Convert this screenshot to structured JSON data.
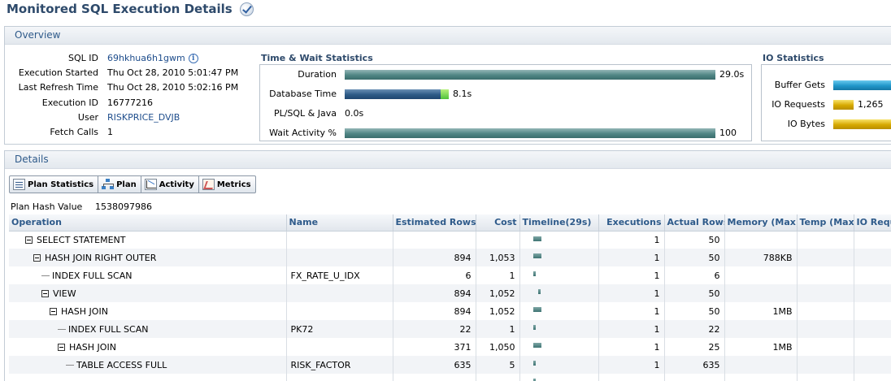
{
  "page": {
    "title": "Monitored SQL Execution Details"
  },
  "overview": {
    "header": "Overview",
    "fields": [
      {
        "label": "SQL ID",
        "value": "69hkhua6h1gwm",
        "link": true,
        "info": true
      },
      {
        "label": "Execution Started",
        "value": "Thu Oct 28, 2010 5:01:47 PM"
      },
      {
        "label": "Last Refresh Time",
        "value": "Thu Oct 28, 2010 5:02:16 PM"
      },
      {
        "label": "Execution ID",
        "value": "16777216"
      },
      {
        "label": "User",
        "value": "RISKPRICE_DVJB",
        "link": true
      },
      {
        "label": "Fetch Calls",
        "value": "1"
      }
    ],
    "time_wait": {
      "title": "Time & Wait Statistics",
      "rows": [
        {
          "label": "Duration",
          "value": "29.0s",
          "fraction": 1.0
        },
        {
          "label": "Database Time",
          "value": "8.1s",
          "fraction": 0.28
        },
        {
          "label": "PL/SQL & Java",
          "value": "0.0s",
          "fraction": 0
        },
        {
          "label": "Wait Activity %",
          "value": "100",
          "fraction": 1.0
        }
      ]
    },
    "io": {
      "title": "IO Statistics",
      "rows": [
        {
          "label": "Buffer Gets",
          "value": ""
        },
        {
          "label": "IO Requests",
          "value": "1,265"
        },
        {
          "label": "IO Bytes",
          "value": ""
        }
      ]
    }
  },
  "details": {
    "header": "Details",
    "tabs": [
      {
        "label": "Plan Statistics",
        "icon": "plan-statistics-icon"
      },
      {
        "label": "Plan",
        "icon": "plan-tree-icon"
      },
      {
        "label": "Activity",
        "icon": "activity-chart-icon"
      },
      {
        "label": "Metrics",
        "icon": "metrics-chart-icon"
      }
    ],
    "plan_hash_label": "Plan Hash Value",
    "plan_hash_value": "1538097986",
    "columns": [
      "Operation",
      "Name",
      "Estimated Rows",
      "Cost",
      "Timeline(29s)",
      "Executions",
      "Actual Rows",
      "Memory (Max)",
      "Temp (Max)",
      "IO Requ"
    ],
    "rows": [
      {
        "depth": 0,
        "expand": true,
        "operation": "SELECT STATEMENT",
        "name": "",
        "est_rows": "",
        "cost": "",
        "executions": "1",
        "actual_rows": "50",
        "memory": "",
        "temp": "",
        "io": ""
      },
      {
        "depth": 1,
        "expand": true,
        "operation": "HASH JOIN RIGHT OUTER",
        "name": "",
        "est_rows": "894",
        "cost": "1,053",
        "executions": "1",
        "actual_rows": "50",
        "memory": "788KB",
        "temp": "",
        "io": ""
      },
      {
        "depth": 2,
        "expand": false,
        "operation": "INDEX FULL SCAN",
        "name": "FX_RATE_U_IDX",
        "est_rows": "6",
        "cost": "1",
        "executions": "1",
        "actual_rows": "6",
        "memory": "",
        "temp": "",
        "io": ""
      },
      {
        "depth": 2,
        "expand": true,
        "operation": "VIEW",
        "name": "",
        "est_rows": "894",
        "cost": "1,052",
        "executions": "1",
        "actual_rows": "50",
        "memory": "",
        "temp": "",
        "io": ""
      },
      {
        "depth": 3,
        "expand": true,
        "operation": "HASH JOIN",
        "name": "",
        "est_rows": "894",
        "cost": "1,052",
        "executions": "1",
        "actual_rows": "50",
        "memory": "1MB",
        "temp": "",
        "io": ""
      },
      {
        "depth": 4,
        "expand": false,
        "operation": "INDEX FULL SCAN",
        "name": "PK72",
        "est_rows": "22",
        "cost": "1",
        "executions": "1",
        "actual_rows": "22",
        "memory": "",
        "temp": "",
        "io": ""
      },
      {
        "depth": 4,
        "expand": true,
        "operation": "HASH JOIN",
        "name": "",
        "est_rows": "371",
        "cost": "1,050",
        "executions": "1",
        "actual_rows": "25",
        "memory": "1MB",
        "temp": "",
        "io": ""
      },
      {
        "depth": 5,
        "expand": false,
        "operation": "TABLE ACCESS FULL",
        "name": "RISK_FACTOR",
        "est_rows": "635",
        "cost": "5",
        "executions": "1",
        "actual_rows": "635",
        "memory": "",
        "temp": "",
        "io": ""
      },
      {
        "depth": 5,
        "expand": false,
        "operation": "",
        "name": "",
        "est_rows": "",
        "cost": "",
        "executions": "",
        "actual_rows": "",
        "memory": "",
        "temp": "",
        "io": ""
      }
    ]
  },
  "colors": {
    "title": "#2e4a6b",
    "header_text": "#2e5a8a",
    "bar_teal": "#4f8584",
    "bar_navy": "#2c5a86",
    "bar_green": "#4fc23a",
    "bar_cyan": "#1f96c9",
    "bar_gold": "#d6a800"
  }
}
